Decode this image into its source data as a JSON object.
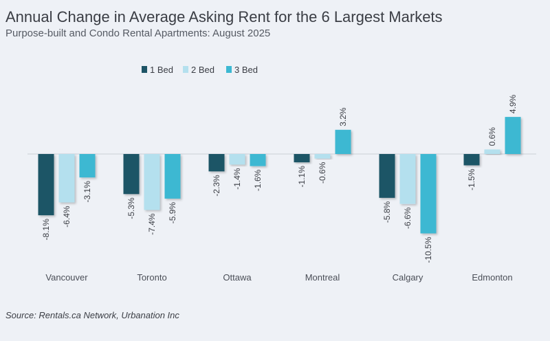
{
  "chart_data": {
    "type": "bar",
    "title": "Annual Change in Average Asking Rent for the 6 Largest Markets",
    "subtitle": "Purpose-built and Condo Rental Apartments: August 2025",
    "categories": [
      "Vancouver",
      "Toronto",
      "Ottawa",
      "Montreal",
      "Calgary",
      "Edmonton"
    ],
    "series": [
      {
        "name": "1 Bed",
        "color": "#1d5466",
        "values": [
          -8.1,
          -5.3,
          -2.3,
          -1.1,
          -5.8,
          -1.5
        ]
      },
      {
        "name": "2 Bed",
        "color": "#b4e0ee",
        "values": [
          -6.4,
          -7.4,
          -1.4,
          -0.6,
          -6.6,
          0.6
        ]
      },
      {
        "name": "3 Bed",
        "color": "#3cb8d2",
        "values": [
          -3.1,
          -5.9,
          -1.6,
          3.2,
          -10.5,
          4.9
        ]
      }
    ],
    "value_labels": [
      [
        "-8.1%",
        "-5.3%",
        "-2.3%",
        "-1.1%",
        "-5.8%",
        "-1.5%"
      ],
      [
        "-6.4%",
        "-7.4%",
        "-1.4%",
        "-0.6%",
        "-6.6%",
        "0.6%"
      ],
      [
        "-3.1%",
        "-5.9%",
        "-1.6%",
        "3.2%",
        "-10.5%",
        "4.9%"
      ]
    ],
    "ylim": [
      -10.5,
      4.9
    ],
    "legend_position": "top-left",
    "grid": false,
    "source": "Source: Rentals.ca Network, Urbanation Inc"
  }
}
